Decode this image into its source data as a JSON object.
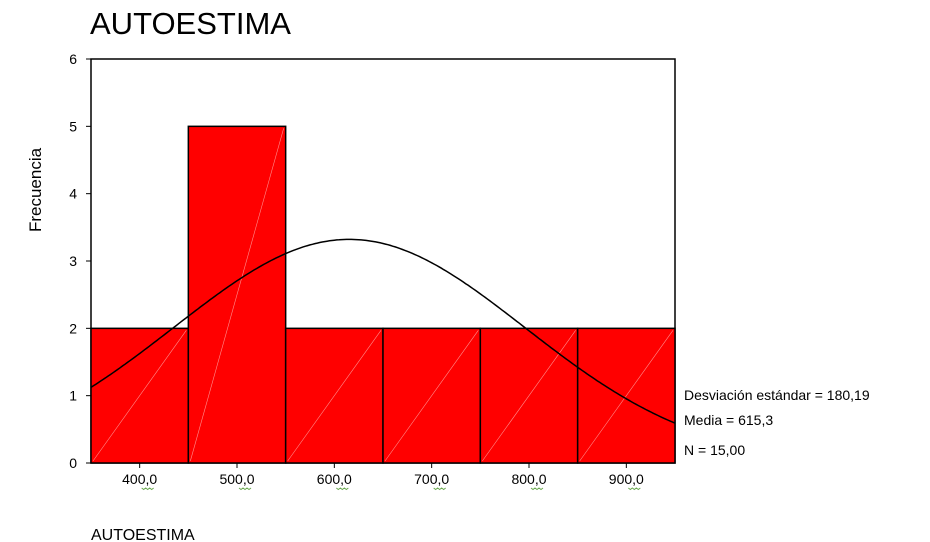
{
  "chart_data": {
    "type": "bar",
    "title": "AUTOESTIMA",
    "xlabel": "AUTOESTIMA",
    "ylabel": "Frecuencia",
    "x_ticks": [
      "400,0",
      "500,0",
      "600,0",
      "700,0",
      "800,0",
      "900,0"
    ],
    "x_tick_values": [
      400,
      500,
      600,
      700,
      800,
      900
    ],
    "xlim": [
      350,
      950
    ],
    "bin_width": 100,
    "bins": [
      {
        "center": 400,
        "count": 2
      },
      {
        "center": 500,
        "count": 5
      },
      {
        "center": 600,
        "count": 2
      },
      {
        "center": 700,
        "count": 2
      },
      {
        "center": 800,
        "count": 2
      },
      {
        "center": 900,
        "count": 2
      }
    ],
    "y_ticks": [
      "0",
      "1",
      "2",
      "3",
      "4",
      "5",
      "6"
    ],
    "ylim": [
      0,
      6
    ],
    "normal_curve": {
      "mean": 615.3,
      "std": 180.19,
      "n": 15
    },
    "stats": {
      "std_label": "Desviación estándar = 180,19",
      "mean_label": "Media = 615,3",
      "n_label": "N = 15,00"
    },
    "colors": {
      "bar_fill": "#ff0000",
      "bar_stroke": "#000000",
      "curve": "#000000",
      "background": "#ffffff"
    }
  }
}
